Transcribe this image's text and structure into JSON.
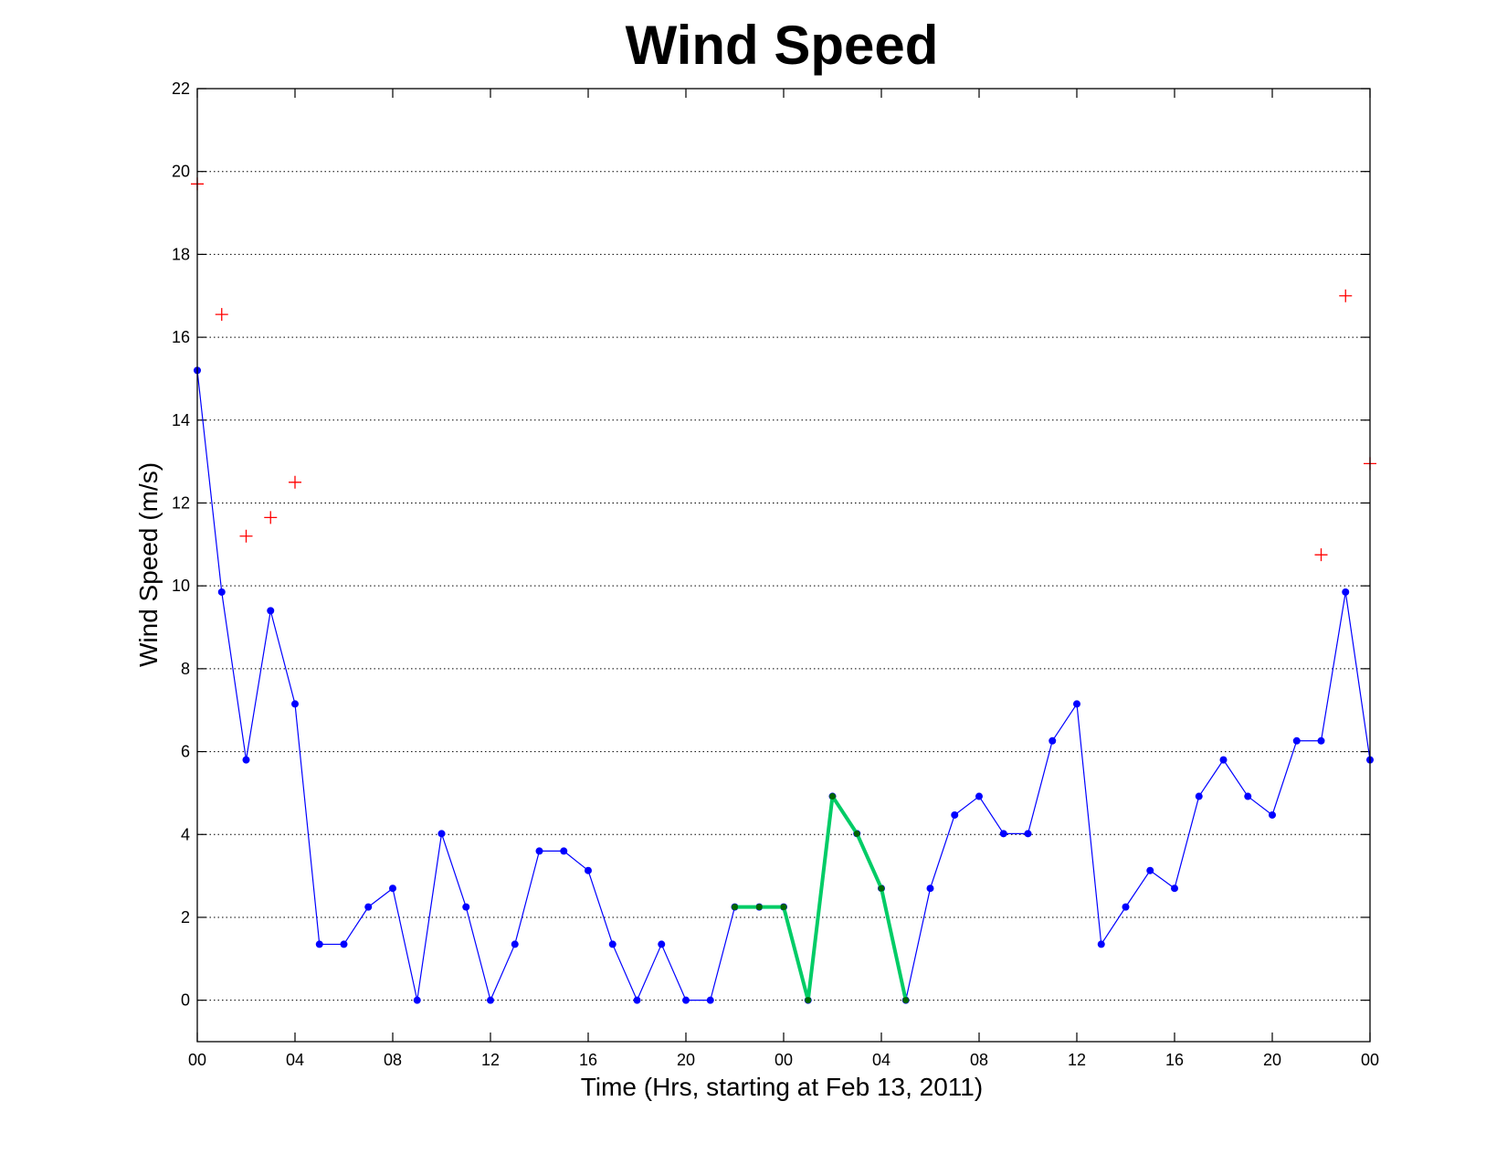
{
  "chart_data": {
    "type": "line",
    "title": "Wind Speed",
    "xlabel": "Time (Hrs, starting at Feb 13, 2011)",
    "ylabel": "Wind Speed (m/s)",
    "xlim": [
      0,
      48
    ],
    "ylim": [
      -1,
      22
    ],
    "grid": "horizontal-dotted",
    "xticks": {
      "values": [
        0,
        4,
        8,
        12,
        16,
        20,
        24,
        28,
        32,
        36,
        40,
        44,
        48
      ],
      "labels": [
        "00",
        "04",
        "08",
        "12",
        "16",
        "20",
        "00",
        "04",
        "08",
        "12",
        "16",
        "20",
        "00"
      ]
    },
    "yticks": [
      0,
      2,
      4,
      6,
      8,
      10,
      12,
      14,
      16,
      18,
      20,
      22
    ],
    "series": [
      {
        "style": "line-with-dots",
        "color": "#0000ff",
        "x": [
          0,
          1,
          2,
          3,
          4,
          5,
          6,
          7,
          8,
          9,
          10,
          11,
          12,
          13,
          14,
          15,
          16,
          17,
          18,
          19,
          20,
          21,
          22,
          23,
          24,
          25,
          26,
          27,
          28,
          29,
          30,
          31,
          32,
          33,
          34,
          35,
          36,
          37,
          38,
          39,
          40,
          41,
          42,
          43,
          44,
          45,
          46,
          47,
          48
        ],
        "values": [
          15.2,
          9.85,
          5.8,
          9.4,
          7.15,
          1.35,
          1.35,
          2.25,
          2.7,
          0,
          4.02,
          2.25,
          0,
          1.35,
          3.6,
          3.6,
          3.13,
          1.35,
          0,
          1.35,
          0,
          0,
          2.25,
          2.25,
          2.25,
          0,
          4.92,
          4.02,
          2.7,
          0,
          2.7,
          4.47,
          4.92,
          4.02,
          4.02,
          6.26,
          7.15,
          1.35,
          2.25,
          3.13,
          2.7,
          4.92,
          5.8,
          4.92,
          4.47,
          6.26,
          6.26,
          9.85,
          5.8
        ]
      },
      {
        "style": "thick-line-with-dots",
        "color": "#00cc66",
        "marker_color": "#006600",
        "x": [
          22,
          23,
          24,
          25,
          26,
          27,
          28,
          29
        ],
        "values": [
          2.25,
          2.25,
          2.25,
          0,
          4.92,
          4.02,
          2.7,
          0
        ]
      },
      {
        "style": "plus-markers",
        "color": "#ff0000",
        "x": [
          0,
          1,
          2,
          3,
          4,
          46,
          47,
          48
        ],
        "values": [
          19.7,
          16.55,
          11.2,
          11.65,
          12.5,
          10.75,
          17.0,
          12.95
        ]
      }
    ]
  }
}
